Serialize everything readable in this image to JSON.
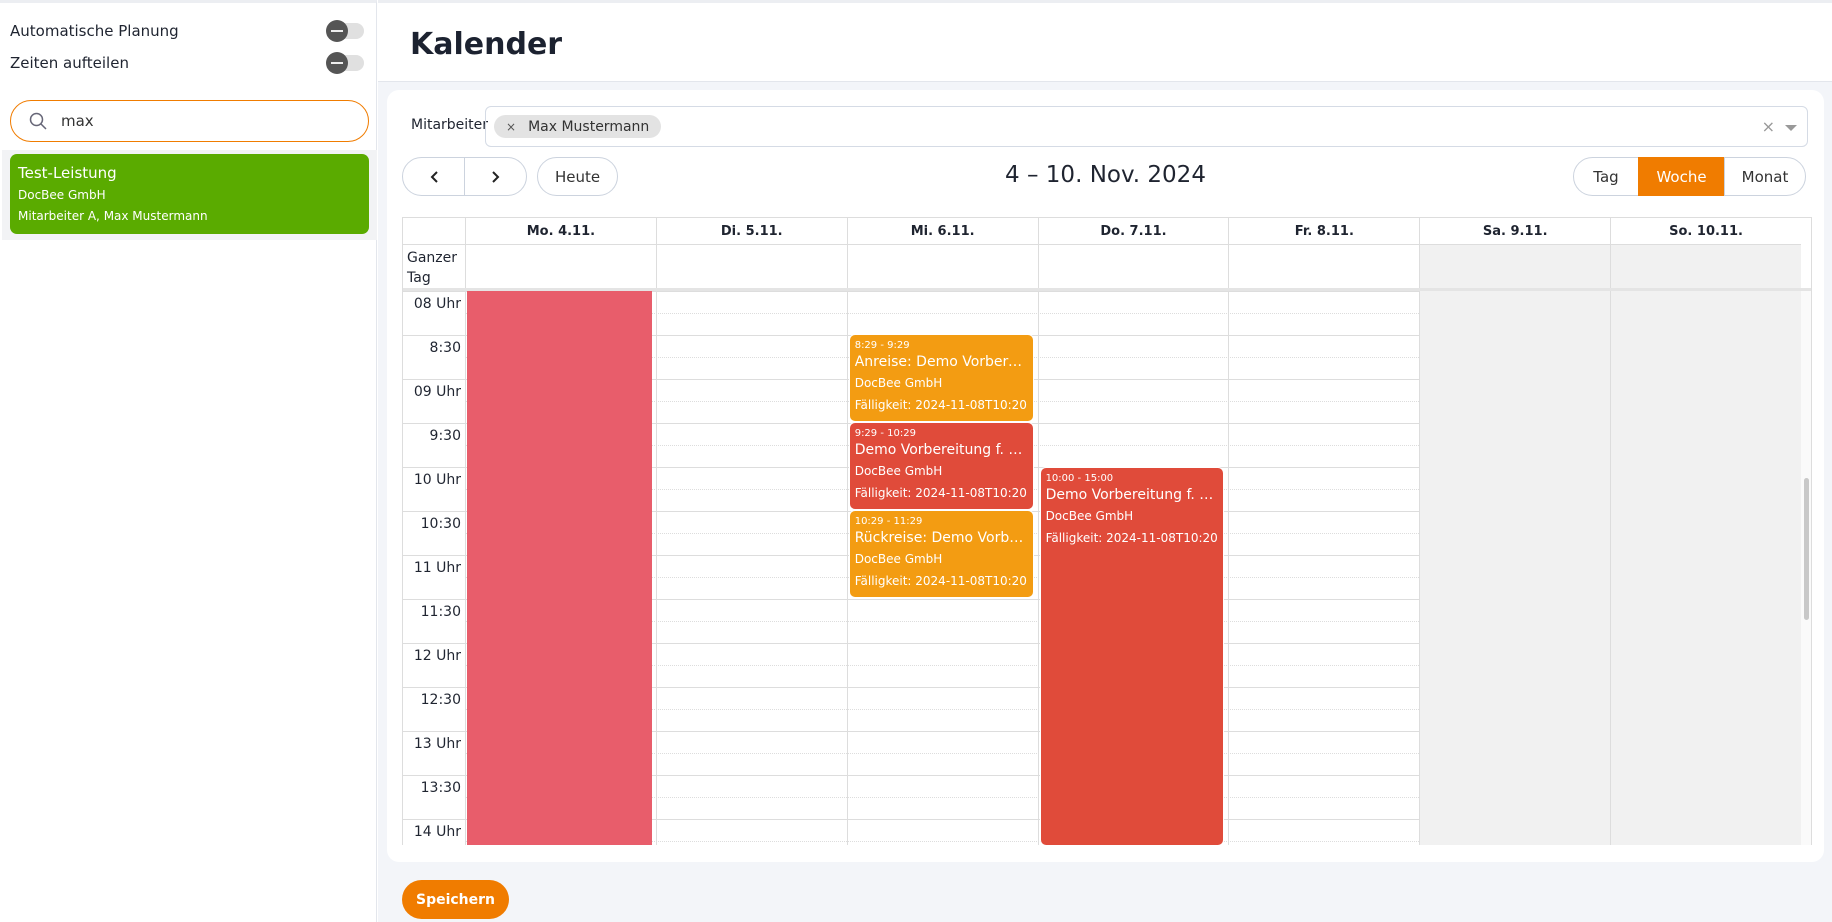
{
  "sidebar": {
    "toggles": [
      {
        "label": "Automatische Planung",
        "on": false
      },
      {
        "label": "Zeiten aufteilen",
        "on": false
      }
    ],
    "search": {
      "value": "max",
      "icon": "search-icon"
    },
    "results": [
      {
        "title": "Test-Leistung",
        "company": "DocBee GmbH",
        "staff": "Mitarbeiter A, Max Mustermann",
        "color": "#5aab00"
      }
    ]
  },
  "header": {
    "title": "Kalender"
  },
  "calendar": {
    "staff_label": "Mitarbeiter",
    "staff_chips": [
      {
        "label": "Max Mustermann",
        "remove": "×"
      }
    ],
    "clear": "×",
    "today_label": "Heute",
    "range_title": "4 – 10. Nov. 2024",
    "views": [
      {
        "label": "Tag",
        "active": false
      },
      {
        "label": "Woche",
        "active": true
      },
      {
        "label": "Monat",
        "active": false
      }
    ],
    "accent": "#f07c00",
    "all_day_label": "Ganzer Tag",
    "days": [
      {
        "label": "Mo. 4.11.",
        "weekend": false
      },
      {
        "label": "Di. 5.11.",
        "weekend": false
      },
      {
        "label": "Mi. 6.11.",
        "weekend": false
      },
      {
        "label": "Do. 7.11.",
        "weekend": false
      },
      {
        "label": "Fr. 8.11.",
        "weekend": false
      },
      {
        "label": "Sa. 9.11.",
        "weekend": true
      },
      {
        "label": "So. 10.11.",
        "weekend": true
      }
    ],
    "time_labels": [
      "08 Uhr",
      "8:30",
      "09 Uhr",
      "9:30",
      "10 Uhr",
      "10:30",
      "11 Uhr",
      "11:30",
      "12 Uhr",
      "12:30",
      "13 Uhr",
      "13:30",
      "14 Uhr"
    ],
    "events": [
      {
        "day": 0,
        "time": "",
        "title": "",
        "company": "",
        "due": "",
        "color": "#e85d6b"
      },
      {
        "day": 2,
        "time": "8:29 - 9:29",
        "title": "Anreise: Demo Vorbereitung f. M...",
        "company": "DocBee GmbH",
        "due": "Fälligkeit: 2024-11-08T10:20",
        "color": "#f39c12"
      },
      {
        "day": 2,
        "time": "9:29 - 10:29",
        "title": "Demo Vorbereitung f. M...",
        "company": "DocBee GmbH",
        "due": "Fälligkeit: 2024-11-08T10:20",
        "color": "#e04b3a"
      },
      {
        "day": 2,
        "time": "10:29 - 11:29",
        "title": "Rückreise: Demo Vorbereitung f. M...",
        "company": "DocBee GmbH",
        "due": "Fälligkeit: 2024-11-08T10:20",
        "color": "#f39c12"
      },
      {
        "day": 3,
        "time": "10:00 - 15:00",
        "title": "Demo Vorbereitung f. M...",
        "company": "DocBee GmbH",
        "due": "Fälligkeit: 2024-11-08T10:20",
        "color": "#e04b3a"
      }
    ]
  },
  "footer": {
    "save_label": "Speichern"
  }
}
